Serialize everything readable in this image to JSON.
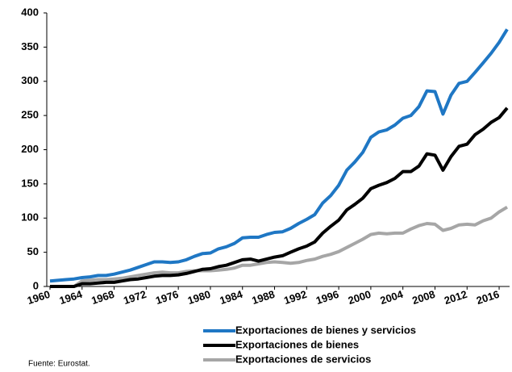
{
  "chart_data": {
    "type": "line",
    "source": "Fuente: Eurostat.",
    "x": [
      1960,
      1961,
      1962,
      1963,
      1964,
      1965,
      1966,
      1967,
      1968,
      1969,
      1970,
      1971,
      1972,
      1973,
      1974,
      1975,
      1976,
      1977,
      1978,
      1979,
      1980,
      1981,
      1982,
      1983,
      1984,
      1985,
      1986,
      1987,
      1988,
      1989,
      1990,
      1991,
      1992,
      1993,
      1994,
      1995,
      1996,
      1997,
      1998,
      1999,
      2000,
      2001,
      2002,
      2003,
      2004,
      2005,
      2006,
      2007,
      2008,
      2009,
      2010,
      2011,
      2012,
      2013,
      2014,
      2015,
      2016,
      2017
    ],
    "series": [
      {
        "name": "Exportaciones de bienes y servicios",
        "color": "#1f77c4",
        "values": [
          8,
          9,
          10,
          11,
          13,
          14,
          16,
          16,
          18,
          21,
          24,
          28,
          32,
          36,
          36,
          35,
          36,
          39,
          44,
          48,
          49,
          55,
          58,
          63,
          71,
          72,
          72,
          76,
          79,
          80,
          85,
          92,
          98,
          105,
          122,
          133,
          148,
          170,
          182,
          196,
          218,
          226,
          229,
          236,
          246,
          250,
          263,
          286,
          285,
          252,
          280,
          297,
          300,
          313,
          327,
          341,
          357,
          376
        ]
      },
      {
        "name": "Exportaciones de bienes",
        "color": "#000000",
        "values": [
          0,
          0,
          0,
          0,
          4,
          4,
          5,
          6,
          6,
          8,
          10,
          11,
          13,
          15,
          16,
          16,
          17,
          19,
          22,
          25,
          26,
          29,
          31,
          35,
          39,
          40,
          37,
          40,
          43,
          45,
          50,
          55,
          59,
          65,
          78,
          88,
          97,
          112,
          120,
          129,
          143,
          148,
          152,
          158,
          168,
          168,
          176,
          194,
          192,
          170,
          190,
          205,
          208,
          222,
          230,
          240,
          247,
          261
        ]
      },
      {
        "name": "Exportaciones de servicios",
        "color": "#a6a6a6",
        "values": [
          0,
          0,
          0,
          0,
          8,
          9,
          10,
          10,
          11,
          12,
          14,
          16,
          18,
          20,
          21,
          20,
          20,
          22,
          23,
          23,
          23,
          24,
          25,
          27,
          31,
          31,
          33,
          35,
          36,
          35,
          34,
          35,
          38,
          40,
          44,
          47,
          51,
          57,
          63,
          69,
          76,
          78,
          77,
          78,
          78,
          84,
          89,
          92,
          91,
          82,
          85,
          90,
          91,
          90,
          96,
          100,
          109,
          116
        ]
      }
    ],
    "xlim": [
      1960,
      2017
    ],
    "xticks": [
      1960,
      1964,
      1968,
      1972,
      1976,
      1980,
      1984,
      1988,
      1992,
      1996,
      2000,
      2004,
      2008,
      2012,
      2016
    ],
    "ylim": [
      0,
      400
    ],
    "yticks": [
      0,
      50,
      100,
      150,
      200,
      250,
      300,
      350,
      400
    ],
    "grid": false
  }
}
